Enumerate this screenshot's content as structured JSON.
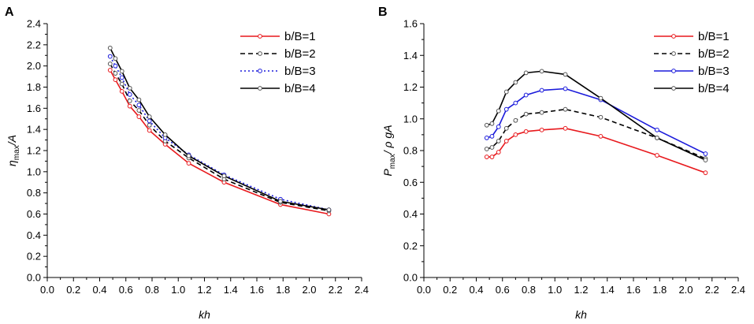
{
  "chart_data": [
    {
      "panel_label": "A",
      "type": "line",
      "xlabel": "kh",
      "ylabel": "η_max/A",
      "ylabel_parts": {
        "symbol": "η",
        "subscript": "max",
        "suffix": "/A"
      },
      "xlim": [
        0.0,
        2.4
      ],
      "ylim": [
        0.0,
        2.4
      ],
      "x_ticks": [
        "0.0",
        "0.2",
        "0.4",
        "0.6",
        "0.8",
        "1.0",
        "1.2",
        "1.4",
        "1.6",
        "1.8",
        "2.0",
        "2.2",
        "2.4"
      ],
      "y_ticks": [
        "0.0",
        "0.2",
        "0.4",
        "0.6",
        "0.8",
        "1.0",
        "1.2",
        "1.4",
        "1.6",
        "1.8",
        "2.0",
        "2.2",
        "2.4"
      ],
      "legend_position": "top-right",
      "series": [
        {
          "name": "b/B=1",
          "color": "#e8191d",
          "dash": "solid",
          "marker_color": "#e8191d",
          "x": [
            0.48,
            0.52,
            0.57,
            0.63,
            0.7,
            0.78,
            0.9,
            1.08,
            1.35,
            1.78,
            2.15
          ],
          "y": [
            1.96,
            1.87,
            1.76,
            1.62,
            1.52,
            1.39,
            1.26,
            1.08,
            0.9,
            0.69,
            0.6
          ]
        },
        {
          "name": "b/B=2",
          "color": "#000000",
          "dash": "dashed",
          "marker_color": "#555555",
          "x": [
            0.48,
            0.52,
            0.57,
            0.63,
            0.7,
            0.78,
            0.9,
            1.08,
            1.35,
            1.78,
            2.15
          ],
          "y": [
            2.02,
            1.93,
            1.83,
            1.67,
            1.58,
            1.44,
            1.29,
            1.13,
            0.93,
            0.71,
            0.63
          ]
        },
        {
          "name": "b/B=3",
          "color": "#1a1adb",
          "dash": "dotted",
          "marker_color": "#1a1adb",
          "x": [
            0.48,
            0.52,
            0.57,
            0.63,
            0.7,
            0.78,
            0.9,
            1.08,
            1.35,
            1.78,
            2.15
          ],
          "y": [
            2.09,
            2.0,
            1.89,
            1.73,
            1.63,
            1.48,
            1.32,
            1.16,
            0.97,
            0.74,
            0.64
          ]
        },
        {
          "name": "b/B=4",
          "color": "#000000",
          "dash": "solid",
          "marker_color": "#555555",
          "x": [
            0.48,
            0.52,
            0.57,
            0.63,
            0.7,
            0.78,
            0.9,
            1.08,
            1.35,
            1.78,
            2.15
          ],
          "y": [
            2.17,
            2.07,
            1.95,
            1.79,
            1.68,
            1.52,
            1.35,
            1.15,
            0.96,
            0.72,
            0.64
          ]
        }
      ]
    },
    {
      "panel_label": "B",
      "type": "line",
      "xlabel": "kh",
      "ylabel": "P_max/ρgA",
      "ylabel_parts": {
        "symbol": "P",
        "subscript": "max",
        "suffix": "/ ρ gA"
      },
      "xlim": [
        0.0,
        2.4
      ],
      "ylim": [
        0.0,
        1.6
      ],
      "x_ticks": [
        "0.0",
        "0.2",
        "0.4",
        "0.6",
        "0.8",
        "1.0",
        "1.2",
        "1.4",
        "1.6",
        "1.8",
        "2.0",
        "2.2",
        "2.4"
      ],
      "y_ticks": [
        "0.0",
        "0.2",
        "0.4",
        "0.6",
        "0.8",
        "1.0",
        "1.2",
        "1.4",
        "1.6"
      ],
      "legend_position": "top-right",
      "series": [
        {
          "name": "b/B=1",
          "color": "#e8191d",
          "dash": "solid",
          "marker_color": "#e8191d",
          "x": [
            0.48,
            0.52,
            0.57,
            0.63,
            0.7,
            0.78,
            0.9,
            1.08,
            1.35,
            1.78,
            2.15
          ],
          "y": [
            0.76,
            0.76,
            0.79,
            0.86,
            0.9,
            0.92,
            0.93,
            0.94,
            0.89,
            0.77,
            0.66
          ]
        },
        {
          "name": "b/B=2",
          "color": "#000000",
          "dash": "dashed",
          "marker_color": "#555555",
          "x": [
            0.48,
            0.52,
            0.57,
            0.63,
            0.7,
            0.78,
            0.9,
            1.08,
            1.35,
            1.78,
            2.15
          ],
          "y": [
            0.81,
            0.82,
            0.86,
            0.94,
            0.99,
            1.03,
            1.04,
            1.06,
            1.01,
            0.88,
            0.75
          ]
        },
        {
          "name": "b/B=3",
          "color": "#1a1adb",
          "dash": "solid",
          "marker_color": "#1a1adb",
          "x": [
            0.48,
            0.52,
            0.57,
            0.63,
            0.7,
            0.78,
            0.9,
            1.08,
            1.35,
            1.78,
            2.15
          ],
          "y": [
            0.88,
            0.89,
            0.95,
            1.06,
            1.1,
            1.15,
            1.18,
            1.19,
            1.12,
            0.93,
            0.78
          ]
        },
        {
          "name": "b/B=4",
          "color": "#000000",
          "dash": "solid",
          "marker_color": "#555555",
          "x": [
            0.48,
            0.52,
            0.57,
            0.63,
            0.7,
            0.78,
            0.9,
            1.08,
            1.35,
            1.78,
            2.15
          ],
          "y": [
            0.96,
            0.97,
            1.05,
            1.17,
            1.23,
            1.29,
            1.3,
            1.28,
            1.13,
            0.88,
            0.74
          ]
        }
      ]
    }
  ]
}
